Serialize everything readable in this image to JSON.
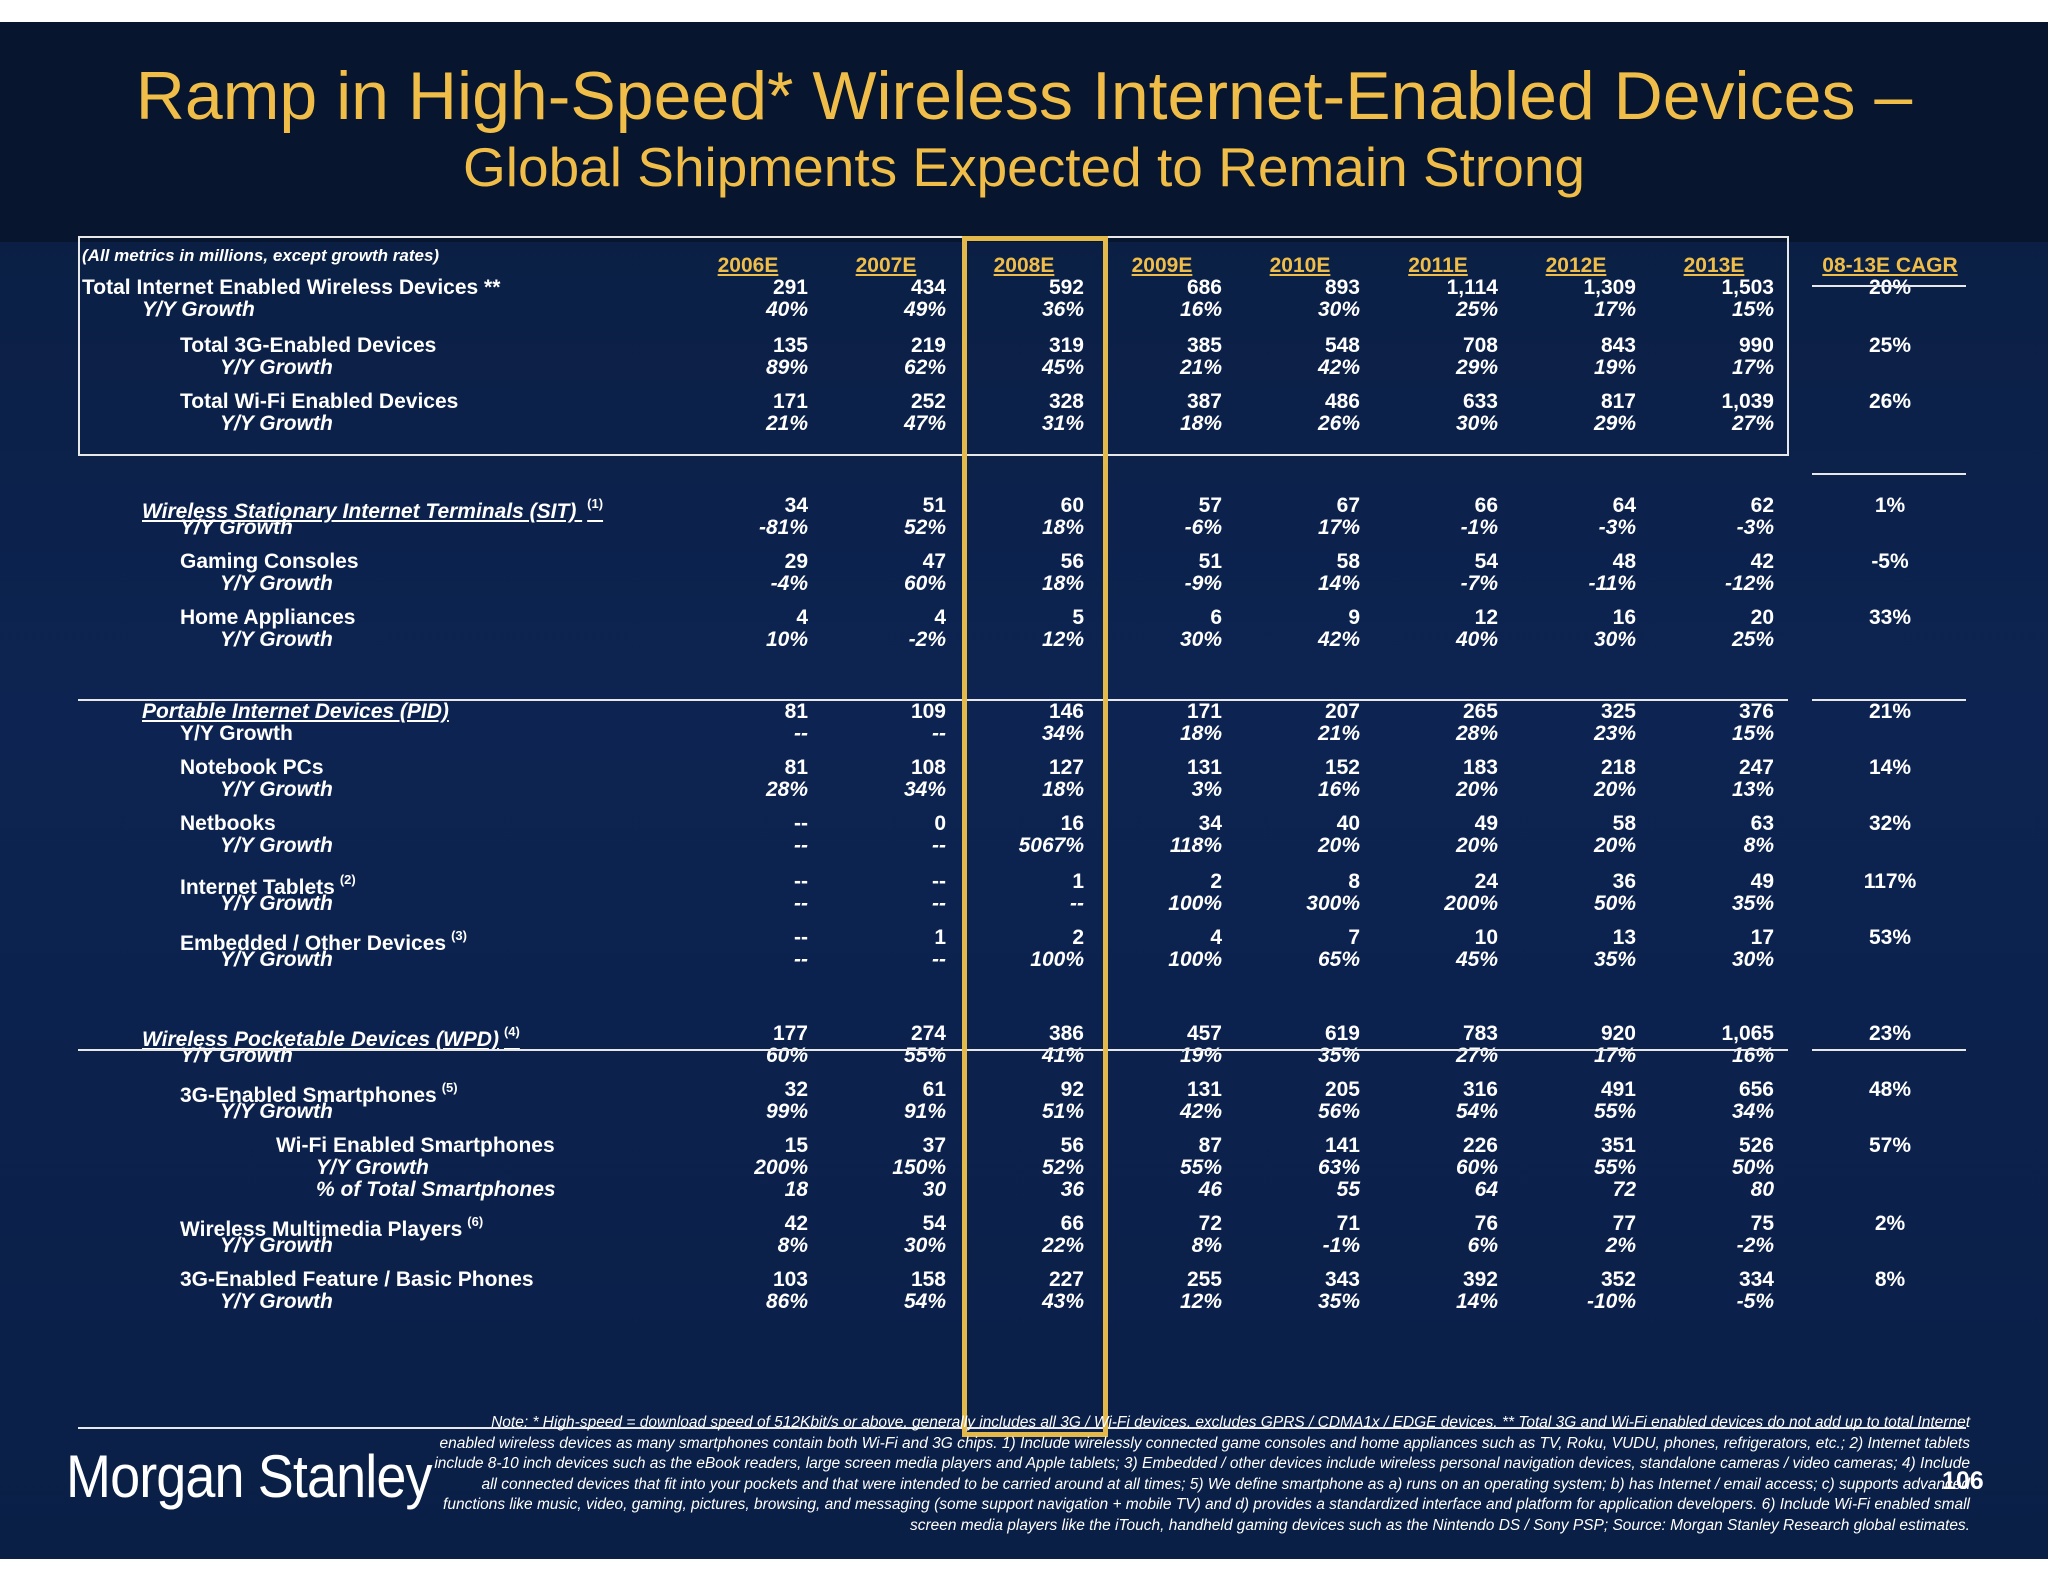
{
  "title": "Ramp in High-Speed* Wireless Internet-Enabled Devices –",
  "subtitle": "Global Shipments Expected to Remain Strong",
  "metrics_note": "(All metrics in millions, except growth rates)",
  "column_headers": [
    "2006E",
    "2007E",
    "2008E",
    "2009E",
    "2010E",
    "2011E",
    "2012E",
    "2013E"
  ],
  "cagr_header": "08-13E CAGR",
  "highlighted_column": "2008E",
  "colors": {
    "background": "#0d2452",
    "title": "#f0be48",
    "highlight_box": "#e4b94c",
    "text": "#ffffff"
  },
  "rows": [
    {
      "label": "Total Internet Enabled Wireless Devices **",
      "indent": 0,
      "style": "plain",
      "values": [
        "291",
        "434",
        "592",
        "686",
        "893",
        "1,114",
        "1,309",
        "1,503"
      ],
      "cagr": "20%"
    },
    {
      "label": "Y/Y Growth",
      "indent": 1,
      "style": "italic",
      "values": [
        "40%",
        "49%",
        "36%",
        "16%",
        "30%",
        "25%",
        "17%",
        "15%"
      ],
      "cagr": ""
    },
    {
      "label": "Total 3G-Enabled Devices",
      "indent": 2,
      "style": "plain",
      "values": [
        "135",
        "219",
        "319",
        "385",
        "548",
        "708",
        "843",
        "990"
      ],
      "cagr": "25%"
    },
    {
      "label": "Y/Y Growth",
      "indent": 3,
      "style": "italic",
      "values": [
        "89%",
        "62%",
        "45%",
        "21%",
        "42%",
        "29%",
        "19%",
        "17%"
      ],
      "cagr": ""
    },
    {
      "label": "Total Wi-Fi Enabled Devices",
      "indent": 2,
      "style": "plain",
      "values": [
        "171",
        "252",
        "328",
        "387",
        "486",
        "633",
        "817",
        "1,039"
      ],
      "cagr": "26%"
    },
    {
      "label": "Y/Y Growth",
      "indent": 3,
      "style": "italic",
      "values": [
        "21%",
        "47%",
        "31%",
        "18%",
        "26%",
        "30%",
        "29%",
        "27%"
      ],
      "cagr": ""
    },
    {
      "label": "Wireless Stationary Internet Terminals  (SIT) ",
      "footnote": "(1)",
      "indent": 1,
      "style": "section",
      "values": [
        "34",
        "51",
        "60",
        "57",
        "67",
        "66",
        "64",
        "62"
      ],
      "cagr": "1%"
    },
    {
      "label": "Y/Y Growth",
      "indent": 2,
      "style": "italic",
      "values": [
        "-81%",
        "52%",
        "18%",
        "-6%",
        "17%",
        "-1%",
        "-3%",
        "-3%"
      ],
      "cagr": ""
    },
    {
      "label": "Gaming Consoles",
      "indent": 2,
      "style": "plain",
      "values": [
        "29",
        "47",
        "56",
        "51",
        "58",
        "54",
        "48",
        "42"
      ],
      "cagr": "-5%"
    },
    {
      "label": "Y/Y Growth",
      "indent": 3,
      "style": "italic",
      "values": [
        "-4%",
        "60%",
        "18%",
        "-9%",
        "14%",
        "-7%",
        "-11%",
        "-12%"
      ],
      "cagr": ""
    },
    {
      "label": "Home Appliances",
      "indent": 2,
      "style": "plain",
      "values": [
        "4",
        "4",
        "5",
        "6",
        "9",
        "12",
        "16",
        "20"
      ],
      "cagr": "33%"
    },
    {
      "label": "Y/Y Growth",
      "indent": 3,
      "style": "italic",
      "values": [
        "10%",
        "-2%",
        "12%",
        "30%",
        "42%",
        "40%",
        "30%",
        "25%"
      ],
      "cagr": ""
    },
    {
      "label": "Portable Internet Devices  (PID)",
      "indent": 1,
      "style": "section",
      "values": [
        "81",
        "109",
        "146",
        "171",
        "207",
        "265",
        "325",
        "376"
      ],
      "cagr": "21%"
    },
    {
      "label": "Y/Y Growth",
      "indent": 2,
      "style": "plain",
      "values": [
        "--",
        "--",
        "34%",
        "18%",
        "21%",
        "28%",
        "23%",
        "15%"
      ],
      "cagr": ""
    },
    {
      "label": "Notebook PCs",
      "indent": 2,
      "style": "plain",
      "values": [
        "81",
        "108",
        "127",
        "131",
        "152",
        "183",
        "218",
        "247"
      ],
      "cagr": "14%"
    },
    {
      "label": "Y/Y Growth",
      "indent": 3,
      "style": "italic",
      "values": [
        "28%",
        "34%",
        "18%",
        "3%",
        "16%",
        "20%",
        "20%",
        "13%"
      ],
      "cagr": ""
    },
    {
      "label": "Netbooks",
      "indent": 2,
      "style": "plain",
      "values": [
        "--",
        "0",
        "16",
        "34",
        "40",
        "49",
        "58",
        "63"
      ],
      "cagr": "32%"
    },
    {
      "label": "Y/Y Growth",
      "indent": 3,
      "style": "italic",
      "values": [
        "--",
        "--",
        "5067%",
        "118%",
        "20%",
        "20%",
        "20%",
        "8%"
      ],
      "cagr": ""
    },
    {
      "label": "Internet Tablets",
      "footnote": "(2)",
      "indent": 2,
      "style": "plain",
      "values": [
        "--",
        "--",
        "1",
        "2",
        "8",
        "24",
        "36",
        "49"
      ],
      "cagr": "117%"
    },
    {
      "label": "Y/Y Growth",
      "indent": 3,
      "style": "italic",
      "values": [
        "--",
        "--",
        "--",
        "100%",
        "300%",
        "200%",
        "50%",
        "35%"
      ],
      "cagr": ""
    },
    {
      "label": "Embedded / Other Devices",
      "footnote": "(3)",
      "indent": 2,
      "style": "plain",
      "values": [
        "--",
        "1",
        "2",
        "4",
        "7",
        "10",
        "13",
        "17"
      ],
      "cagr": "53%"
    },
    {
      "label": "Y/Y Growth",
      "indent": 3,
      "style": "italic",
      "values": [
        "--",
        "--",
        "100%",
        "100%",
        "65%",
        "45%",
        "35%",
        "30%"
      ],
      "cagr": ""
    },
    {
      "label": "Wireless Pocketable Devices  (WPD)",
      "footnote": "(4)",
      "indent": 1,
      "style": "section",
      "values": [
        "177",
        "274",
        "386",
        "457",
        "619",
        "783",
        "920",
        "1,065"
      ],
      "cagr": "23%"
    },
    {
      "label": "Y/Y Growth",
      "indent": 2,
      "style": "italic",
      "values": [
        "60%",
        "55%",
        "41%",
        "19%",
        "35%",
        "27%",
        "17%",
        "16%"
      ],
      "cagr": ""
    },
    {
      "label": "3G-Enabled Smartphones",
      "footnote": "(5)",
      "indent": 2,
      "style": "plain",
      "values": [
        "32",
        "61",
        "92",
        "131",
        "205",
        "316",
        "491",
        "656"
      ],
      "cagr": "48%"
    },
    {
      "label": "Y/Y Growth",
      "indent": 3,
      "style": "italic",
      "values": [
        "99%",
        "91%",
        "51%",
        "42%",
        "56%",
        "54%",
        "55%",
        "34%"
      ],
      "cagr": ""
    },
    {
      "label": "Wi-Fi Enabled Smartphones",
      "indent": 4,
      "style": "plain",
      "values": [
        "15",
        "37",
        "56",
        "87",
        "141",
        "226",
        "351",
        "526"
      ],
      "cagr": "57%"
    },
    {
      "label": "Y/Y Growth",
      "indent": 5,
      "style": "italic",
      "values": [
        "200%",
        "150%",
        "52%",
        "55%",
        "63%",
        "60%",
        "55%",
        "50%"
      ],
      "cagr": ""
    },
    {
      "label": "% of Total Smartphones",
      "indent": 5,
      "style": "italic",
      "values": [
        "18",
        "30",
        "36",
        "46",
        "55",
        "64",
        "72",
        "80"
      ],
      "cagr": ""
    },
    {
      "label": "Wireless Multimedia Players",
      "footnote": "(6)",
      "indent": 2,
      "style": "plain",
      "values": [
        "42",
        "54",
        "66",
        "72",
        "71",
        "76",
        "77",
        "75"
      ],
      "cagr": "2%"
    },
    {
      "label": "Y/Y Growth",
      "indent": 3,
      "style": "italic",
      "values": [
        "8%",
        "30%",
        "22%",
        "8%",
        "-1%",
        "6%",
        "2%",
        "-2%"
      ],
      "cagr": ""
    },
    {
      "label": "3G-Enabled Feature / Basic Phones",
      "indent": 2,
      "style": "plain",
      "values": [
        "103",
        "158",
        "227",
        "255",
        "343",
        "392",
        "352",
        "334"
      ],
      "cagr": "8%"
    },
    {
      "label": "Y/Y Growth",
      "indent": 3,
      "style": "italic",
      "values": [
        "86%",
        "54%",
        "43%",
        "12%",
        "35%",
        "14%",
        "-10%",
        "-5%"
      ],
      "cagr": ""
    }
  ],
  "note": "Note: * High-speed = download speed of 512Kbit/s or above, generally includes all 3G / Wi-Fi devices, excludes GPRS / CDMA1x / EDGE devices. ** Total 3G and Wi-Fi enabled devices do not add up to total Internet enabled wireless devices as many smartphones contain both Wi-Fi and 3G chips. 1) Include wirelessly connected game consoles and home appliances such as TV, Roku, VUDU, phones, refrigerators, etc.; 2) Internet tablets include 8-10 inch devices such as the eBook readers, large screen media players and Apple tablets; 3) Embedded / other devices include wireless personal navigation devices, standalone cameras / video cameras; 4) Include all connected devices that fit into your pockets and that were intended to be carried around at all times; 5) We define smartphone as a) runs on an operating system; b) has Internet / email access; c) supports advanced functions like music, video, gaming, pictures, browsing, and messaging (some support navigation + mobile TV) and d) provides a standardized interface and platform for application developers. 6) Include Wi-Fi enabled small screen media players like the iTouch, handheld gaming devices such as the Nintendo DS / Sony PSP; Source: Morgan Stanley Research global estimates.",
  "logo_text": "Morgan Stanley",
  "page_number": "106"
}
